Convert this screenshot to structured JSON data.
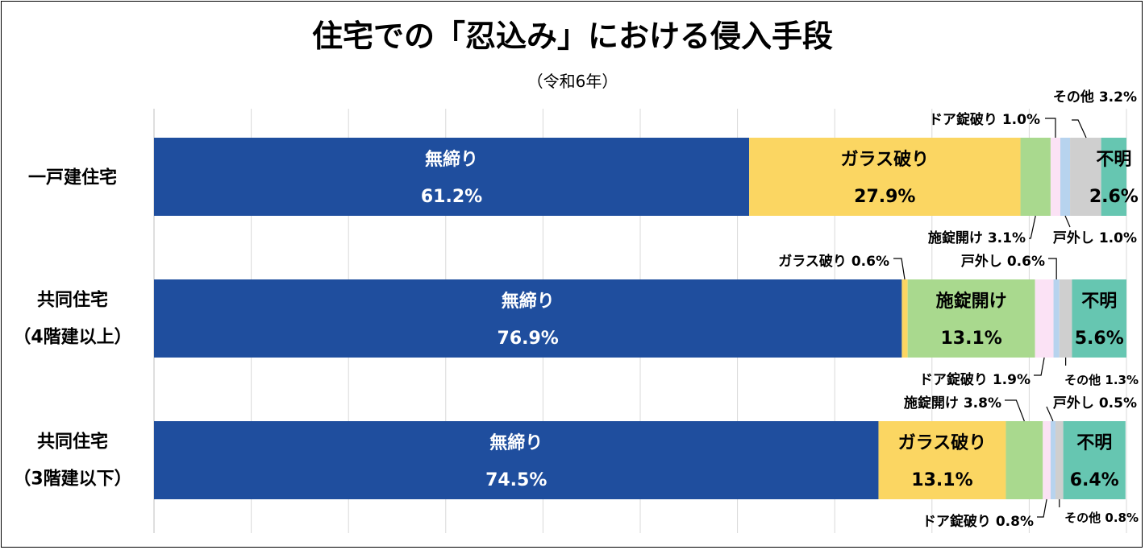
{
  "chart_data": {
    "type": "bar",
    "orientation": "horizontal",
    "stacked": "percent",
    "title": "住宅での「忍込み」における侵入手段",
    "subtitle": "（令和6年）",
    "xlim": [
      0,
      100
    ],
    "grid": true,
    "legend": "none",
    "categories": [
      {
        "lines": [
          "一戸建住宅"
        ]
      },
      {
        "lines": [
          "共同住宅",
          "（4階建以上）"
        ]
      },
      {
        "lines": [
          "共同住宅",
          "（3階建以下）"
        ]
      }
    ],
    "series": [
      {
        "name": "無締り",
        "color": "#1f4e9e",
        "text": "#ffffff",
        "values": [
          61.2,
          76.9,
          74.5
        ]
      },
      {
        "name": "ガラス破り",
        "color": "#fbd662",
        "text": "#000000",
        "values": [
          27.9,
          0.6,
          13.1
        ]
      },
      {
        "name": "施錠開け",
        "color": "#a9d98e",
        "text": "#000000",
        "values": [
          3.1,
          13.1,
          3.8
        ]
      },
      {
        "name": "ドア錠破り",
        "color": "#fbe2f5",
        "text": "#000000",
        "values": [
          1.0,
          1.9,
          0.8
        ]
      },
      {
        "name": "戸外し",
        "color": "#b7d3ee",
        "text": "#000000",
        "values": [
          1.0,
          0.6,
          0.5
        ]
      },
      {
        "name": "その他",
        "color": "#cfcfcf",
        "text": "#000000",
        "values": [
          3.2,
          1.3,
          0.8
        ]
      },
      {
        "name": "不明",
        "color": "#66c6b1",
        "text": "#000000",
        "values": [
          2.6,
          5.6,
          6.4
        ]
      }
    ],
    "inside_labels": [
      {
        "row": 0,
        "seg": 0,
        "name": "無締り",
        "value": "61.2%"
      },
      {
        "row": 0,
        "seg": 1,
        "name": "ガラス破り",
        "value": "27.9%"
      },
      {
        "row": 0,
        "seg": 6,
        "name": "不明",
        "value": "2.6%"
      },
      {
        "row": 1,
        "seg": 0,
        "name": "無締り",
        "value": "76.9%"
      },
      {
        "row": 1,
        "seg": 2,
        "name": "施錠開け",
        "value": "13.1%"
      },
      {
        "row": 1,
        "seg": 6,
        "name": "不明",
        "value": "5.6%"
      },
      {
        "row": 2,
        "seg": 0,
        "name": "無締り",
        "value": "74.5%"
      },
      {
        "row": 2,
        "seg": 1,
        "name": "ガラス破り",
        "value": "13.1%"
      },
      {
        "row": 2,
        "seg": 6,
        "name": "不明",
        "value": "6.4%"
      }
    ],
    "callouts": [
      {
        "row": 0,
        "seg": 5,
        "side": "above",
        "text": "その他 3.2%"
      },
      {
        "row": 0,
        "seg": 3,
        "side": "above",
        "text": "ドア錠破り 1.0%"
      },
      {
        "row": 0,
        "seg": 2,
        "side": "below",
        "text": "施錠開け 3.1%"
      },
      {
        "row": 0,
        "seg": 4,
        "side": "below",
        "text": "戸外し 1.0%"
      },
      {
        "row": 1,
        "seg": 1,
        "side": "above",
        "text": "ガラス破り 0.6%"
      },
      {
        "row": 1,
        "seg": 4,
        "side": "above",
        "text": "戸外し 0.6%"
      },
      {
        "row": 1,
        "seg": 3,
        "side": "below",
        "text": "ドア錠破り 1.9%"
      },
      {
        "row": 1,
        "seg": 5,
        "side": "below",
        "text": "その他 1.3%"
      },
      {
        "row": 2,
        "seg": 2,
        "side": "above",
        "text": "施錠開け 3.8%"
      },
      {
        "row": 2,
        "seg": 4,
        "side": "above",
        "text": "戸外し 0.5%"
      },
      {
        "row": 2,
        "seg": 3,
        "side": "below",
        "text": "ドア錠破り 0.8%"
      },
      {
        "row": 2,
        "seg": 5,
        "side": "below",
        "text": "その他 0.8%"
      }
    ]
  }
}
